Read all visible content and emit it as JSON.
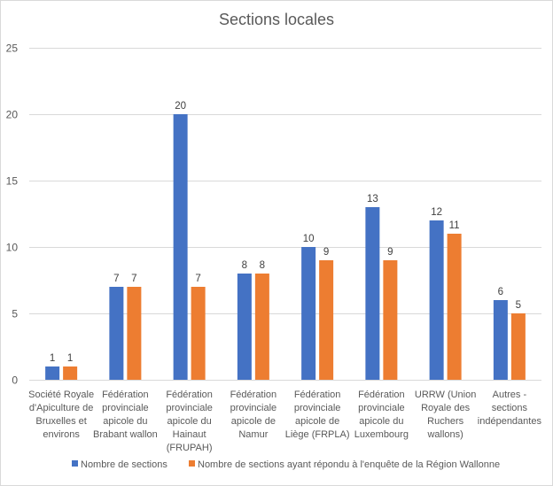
{
  "chart_data": {
    "type": "bar",
    "title": "Sections locales",
    "categories": [
      [
        "Société Royale",
        "d'Apiculture de",
        "Bruxelles et",
        "environs"
      ],
      [
        "Fédération",
        "provinciale",
        "apicole du",
        "Brabant wallon"
      ],
      [
        "Fédération",
        "provinciale",
        "apicole du",
        "Hainaut",
        "(FRUPAH)"
      ],
      [
        "Fédération",
        "provinciale",
        "apicole de",
        "Namur"
      ],
      [
        "Fédération",
        "provinciale",
        "apicole de",
        "Liège (FRPLA)"
      ],
      [
        "Fédération",
        "provinciale",
        "apicole du",
        "Luxembourg"
      ],
      [
        "URRW (Union",
        "Royale des",
        "Ruchers",
        "wallons)"
      ],
      [
        "Autres -",
        "sections",
        "indépendantes"
      ]
    ],
    "series": [
      {
        "name": "Nombre de sections",
        "color": "#4472c4",
        "values": [
          1,
          7,
          20,
          8,
          10,
          13,
          12,
          6
        ]
      },
      {
        "name": "Nombre de sections ayant répondu à l'enquête de la Région Wallonne",
        "color": "#ed7d31",
        "values": [
          1,
          7,
          7,
          8,
          9,
          9,
          11,
          5
        ]
      }
    ],
    "ylim": [
      0,
      25
    ],
    "yticks": [
      0,
      5,
      10,
      15,
      20,
      25
    ],
    "grid": true,
    "legend_position": "bottom",
    "data_labels": true
  }
}
